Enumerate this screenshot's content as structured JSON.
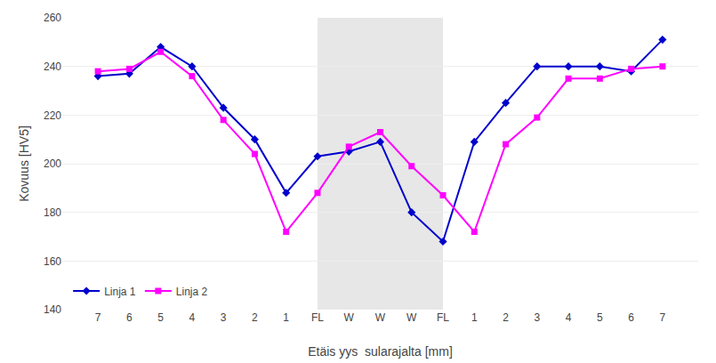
{
  "chart_data": {
    "type": "line",
    "categories": [
      "7",
      "6",
      "5",
      "4",
      "3",
      "2",
      "1",
      "FL",
      "W",
      "W",
      "W",
      "FL",
      "1",
      "2",
      "3",
      "4",
      "5",
      "6",
      "7"
    ],
    "series": [
      {
        "name": "Linja 1",
        "color": "#0000CD",
        "marker": "diamond",
        "line_style": "solid",
        "values": [
          236,
          237,
          248,
          240,
          223,
          210,
          188,
          203,
          205,
          209,
          180,
          168,
          209,
          225,
          240,
          240,
          240,
          238,
          251
        ]
      },
      {
        "name": "Linja 2",
        "color": "#FF00FF",
        "marker": "square",
        "line_style": "solid",
        "values": [
          238,
          239,
          246,
          236,
          218,
          204,
          172,
          188,
          207,
          213,
          199,
          187,
          172,
          208,
          219,
          235,
          235,
          239,
          240
        ]
      }
    ],
    "shaded_span": {
      "from_index": 7,
      "to_index": 11,
      "color": "#D3D3D3"
    },
    "ylim": [
      140,
      260
    ],
    "yticks": [
      140,
      160,
      180,
      200,
      220,
      240,
      260
    ],
    "ylabel": "Kovuus [HV5]",
    "xlabel": "Etäis yys  sularajalta [mm]",
    "grid": "y",
    "legend": "lower left"
  }
}
